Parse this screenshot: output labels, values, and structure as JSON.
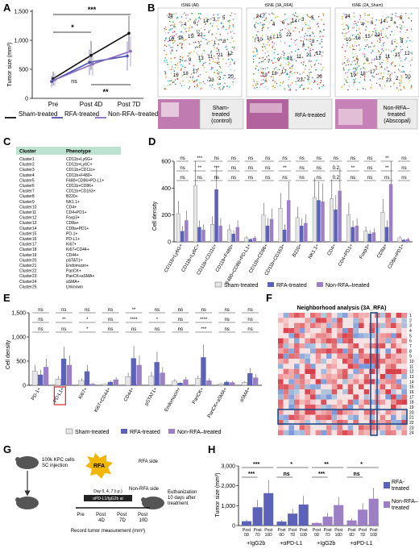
{
  "panels": {
    "A": {
      "label": "A",
      "ylabel": "Tumor size (mm³)",
      "yticks": [
        "1,500",
        "1,000",
        "500",
        "0"
      ],
      "xticks": [
        "Pre",
        "Post 4D",
        "Post 7D"
      ],
      "stars": {
        "top": "***",
        "mid": "*",
        "ns": "ns",
        "bot": "**"
      },
      "legend": [
        "Sham-treated",
        "RFA-treated",
        "Non-RFA–treated"
      ]
    },
    "B": {
      "label": "B",
      "titles": [
        "tSNE (All)",
        "tSNE (3A_RFA)",
        "tSNE (2A_Sham)"
      ],
      "captions": [
        [
          "Sham-",
          "treated",
          "(control)"
        ],
        [
          "RFA-treated"
        ],
        [
          "Non-RFA–",
          "treated",
          "(Abscopal)"
        ]
      ]
    },
    "C": {
      "label": "C",
      "header": [
        "Cluster",
        "Phenotype"
      ],
      "rows": [
        [
          "Cluster1",
          "CD11b+Ly6G+"
        ],
        [
          "Cluster2",
          "CD11b+Ly6C+"
        ],
        [
          "Cluster3",
          "CD11b+CD11c+"
        ],
        [
          "Cluster4",
          "CD11b+F480+"
        ],
        [
          "Cluster5",
          "F480+CD86+PD-L1+"
        ],
        [
          "Cluster6",
          "CD11b+CD86+"
        ],
        [
          "Cluster7",
          "CD11b+CD163+"
        ],
        [
          "Cluster8",
          "B220+"
        ],
        [
          "Cluster9",
          "NK1.1+"
        ],
        [
          "Cluster10",
          "CD4+"
        ],
        [
          "Cluster11",
          "CD4+PD1+"
        ],
        [
          "Cluster12",
          "Foxp3+"
        ],
        [
          "Cluster13",
          "CD8a+"
        ],
        [
          "Cluster14",
          "CD8a+PD1+"
        ],
        [
          "Cluster15",
          "PD-1+"
        ],
        [
          "Cluster16",
          "PD-L1+"
        ],
        [
          "Cluster17",
          "Ki67+"
        ],
        [
          "Cluster18",
          "Ki67+CD44+"
        ],
        [
          "Cluster19",
          "CD44+"
        ],
        [
          "Cluster20",
          "pSTAT1+"
        ],
        [
          "Cluster21",
          "Endomucin+"
        ],
        [
          "Cluster22",
          "PanCK+"
        ],
        [
          "Cluster23",
          "PanCK+aSMA+"
        ],
        [
          "Cluster24",
          "aSMA+"
        ],
        [
          "Cluster25",
          "Unknown"
        ]
      ]
    },
    "D": {
      "label": "D",
      "ylabel": "Cell density",
      "yticks": [
        "600",
        "400",
        "200",
        "0"
      ],
      "categories": [
        "CD11b+Ly6G+",
        "CD11b+Ly6C+",
        "CD11b+CD11c+",
        "CD11b+F480+",
        "F480+CD86+PD-L1+",
        "CD11b+CD86+",
        "CD11b+CD163+",
        "B220+",
        "NK1.1+",
        "CD4+",
        "CD4+PD1+",
        "Foxp3+",
        "CD8a+",
        "CD8a+PD1+"
      ],
      "sig_top": [
        "ns",
        "***",
        "ns",
        "ns",
        "ns",
        "ns",
        "ns",
        "ns",
        "ns",
        "ns",
        "ns",
        "ns",
        "**",
        "ns"
      ],
      "sig_mid": [
        "ns",
        "**",
        "***",
        "ns",
        "ns",
        "ns",
        "**",
        "ns",
        "ns",
        "0.2",
        "**",
        "ns",
        "**",
        "ns"
      ],
      "sig_low": [
        "ns",
        "ns",
        "ns",
        "ns",
        "ns",
        "ns",
        "ns",
        "ns",
        "ns",
        "0.2",
        "ns",
        "ns",
        "ns",
        "ns"
      ],
      "legend": [
        "Sham-treated",
        "RFA-treated",
        "Non-RFA–treated"
      ]
    },
    "E": {
      "label": "E",
      "ylabel": "Cell density",
      "yticks": [
        "1,500",
        "1,000",
        "500",
        "0"
      ],
      "categories": [
        "PD-1+",
        "PD-L1+",
        "Ki67+",
        "Ki67+CD44+",
        "CD44+",
        "pSTAT1+",
        "Endomucin+",
        "PanCK+",
        "PanCK+aSMA+",
        "aSMA+"
      ],
      "sig_top": [
        "ns",
        "ns",
        "ns",
        "ns",
        "**",
        "ns",
        "ns",
        "ns",
        "ns",
        "ns"
      ],
      "sig_mid": [
        "ns",
        "**",
        "*",
        "ns",
        "****",
        "*",
        "ns",
        "****",
        "ns",
        "ns"
      ],
      "sig_low": [
        "ns",
        "ns",
        "*",
        "ns",
        "ns",
        "ns",
        "ns",
        "***",
        "ns",
        "ns"
      ],
      "legend": [
        "Sham-treated",
        "RFA-treated",
        "Non-RFA–treated"
      ]
    },
    "F": {
      "label": "F",
      "title": "Neighborhood analysis (3A_RFA)",
      "row_labels": [
        "1",
        "2",
        "3",
        "4",
        "5",
        "6",
        "7",
        "8",
        "9",
        "10",
        "11",
        "12",
        "13",
        "14",
        "15",
        "16",
        "17",
        "18",
        "19",
        "20",
        "21",
        "22",
        "23",
        "24"
      ]
    },
    "G": {
      "label": "G",
      "texts": [
        "100k KPC cells",
        "SC injection",
        "RFA",
        "RFA side",
        "Non-RFA side",
        "Euthanization",
        "10 days after",
        "treatment",
        "Pre",
        "Post",
        "4D",
        "Post",
        "7D",
        "Post",
        "10D",
        "Record tumor measurement (mm³)",
        "αPD-L1/IgG2b at",
        "Day 0, 4, 7 (i.p.)"
      ]
    },
    "H": {
      "label": "H",
      "ylabel": "Tumor size (mm³)",
      "yticks": [
        "3,000",
        "2,000",
        "1,000",
        "0"
      ],
      "xticks": [
        "Post 0D",
        "Post 7D",
        "Post 10D"
      ],
      "groups": [
        "+IgG2b",
        "+αPD-L1",
        "+IgG2b",
        "+αPD-L1"
      ],
      "sig": [
        [
          "***",
          "***"
        ],
        [
          "*",
          "ns"
        ],
        [
          "**",
          "***"
        ],
        [
          "*",
          "ns"
        ]
      ],
      "legend": [
        "RFA-treated",
        "Non-RFA–treated"
      ]
    }
  },
  "colors": {
    "sham": "#e6e6e6",
    "rfa": "#5b62b8",
    "nonrfa": "#9c7fc4",
    "rfa_line": "#4a4fb0",
    "nonrfa_line": "#8a6cc0",
    "teal": "#bde3d0",
    "rfa_badge": "#f1b700",
    "red": "#d62728"
  },
  "chart_data": [
    {
      "type": "line",
      "title": "",
      "x": [
        "Pre",
        "Post 4D",
        "Post 7D"
      ],
      "ylabel": "Tumor size (mm³)",
      "ylim": [
        0,
        1500
      ],
      "series": [
        {
          "name": "Sham-treated",
          "values": [
            340,
            740,
            1120
          ],
          "err": [
            120,
            250,
            300
          ]
        },
        {
          "name": "RFA-treated",
          "values": [
            290,
            620,
            730
          ],
          "err": [
            100,
            220,
            250
          ]
        },
        {
          "name": "Non-RFA–treated",
          "values": [
            320,
            590,
            810
          ],
          "err": [
            110,
            200,
            260
          ]
        }
      ]
    },
    {
      "type": "bar",
      "ylabel": "Cell density",
      "ylim": [
        0,
        600
      ],
      "categories": [
        "CD11b+Ly6G+",
        "CD11b+Ly6C+",
        "CD11b+CD11c+",
        "CD11b+F480+",
        "F480+CD86+PD-L1+",
        "CD11b+CD86+",
        "CD11b+CD163+",
        "B220+",
        "NK1.1+",
        "CD4+",
        "CD4+PD1+",
        "Foxp3+",
        "CD8a+",
        "CD8a+PD1+"
      ],
      "series": [
        {
          "name": "Sham-treated",
          "values": [
            210,
            420,
            130,
            90,
            30,
            200,
            250,
            180,
            330,
            320,
            200,
            80,
            220,
            30
          ]
        },
        {
          "name": "RFA-treated",
          "values": [
            80,
            110,
            390,
            60,
            20,
            120,
            90,
            120,
            310,
            240,
            110,
            60,
            110,
            15
          ]
        },
        {
          "name": "Non-RFA–treated",
          "values": [
            160,
            90,
            120,
            110,
            30,
            170,
            310,
            140,
            300,
            380,
            120,
            70,
            430,
            20
          ]
        }
      ]
    },
    {
      "type": "bar",
      "ylabel": "Cell density",
      "ylim": [
        0,
        1500
      ],
      "categories": [
        "PD-1+",
        "PD-L1+",
        "Ki67+",
        "Ki67+CD44+",
        "CD44+",
        "pSTAT1+",
        "Endomucin+",
        "PanCK+",
        "PanCK+aSMA+",
        "aSMA+"
      ],
      "series": [
        {
          "name": "Sham-treated",
          "values": [
            290,
            130,
            100,
            20,
            180,
            190,
            90,
            140,
            30,
            60
          ]
        },
        {
          "name": "RFA-treated",
          "values": [
            220,
            550,
            290,
            70,
            560,
            480,
            50,
            580,
            70,
            250
          ]
        },
        {
          "name": "Non-RFA–treated",
          "values": [
            380,
            420,
            30,
            120,
            420,
            260,
            120,
            100,
            60,
            160
          ]
        }
      ]
    },
    {
      "type": "bar",
      "ylabel": "Tumor size (mm³)",
      "ylim": [
        0,
        3000
      ],
      "categories": [
        "+IgG2b Post 0D",
        "+IgG2b Post 7D",
        "+IgG2b Post 10D",
        "+αPD-L1 Post 0D",
        "+αPD-L1 Post 7D",
        "+αPD-L1 Post 10D",
        "+IgG2b Post 0D",
        "+IgG2b Post 7D",
        "+IgG2b Post 10D",
        "+αPD-L1 Post 0D",
        "+αPD-L1 Post 7D",
        "+αPD-L1 Post 10D"
      ],
      "series": [
        {
          "name": "RFA-treated",
          "values": [
            220,
            920,
            1630,
            200,
            600,
            1060,
            null,
            null,
            null,
            null,
            null,
            null
          ]
        },
        {
          "name": "Non-RFA–treated",
          "values": [
            null,
            null,
            null,
            null,
            null,
            null,
            130,
            450,
            1030,
            260,
            800,
            1350
          ]
        }
      ]
    }
  ]
}
